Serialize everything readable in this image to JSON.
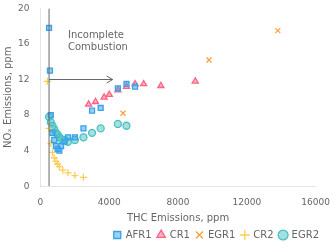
{
  "chart_data": {
    "type": "scatter",
    "xlabel": "THC Emissions, ppm",
    "ylabel": "NOₓ Emissions, ppm",
    "xlim": [
      0,
      16000
    ],
    "ylim": [
      0,
      20
    ],
    "xticks": [
      0,
      4000,
      8000,
      12000,
      16000
    ],
    "yticks": [
      0,
      4,
      8,
      12,
      16,
      20
    ],
    "grid": false,
    "legend": "lower right",
    "series": [
      {
        "name": "AFR1",
        "marker": "square",
        "x": [
          500,
          550,
          600,
          700,
          800,
          900,
          1000,
          1100,
          1200,
          1400,
          1600,
          2000,
          2500,
          3000,
          3500,
          4500,
          5000,
          5500
        ],
        "values": [
          17.8,
          13.0,
          8.0,
          6.0,
          5.2,
          4.5,
          4.2,
          4.0,
          4.5,
          5.0,
          5.5,
          5.5,
          6.5,
          8.5,
          8.8,
          11.0,
          11.5,
          11.2
        ]
      },
      {
        "name": "CR1",
        "marker": "triangle",
        "x": [
          2800,
          3200,
          3700,
          4000,
          4500,
          5000,
          5500,
          6000,
          7000,
          9000
        ],
        "values": [
          9.2,
          9.5,
          10.0,
          10.3,
          10.8,
          11.2,
          11.5,
          11.5,
          11.3,
          11.8
        ]
      },
      {
        "name": "EGR1",
        "marker": "x",
        "x": [
          4800,
          9800,
          13800
        ],
        "values": [
          8.2,
          14.2,
          17.5
        ]
      },
      {
        "name": "CR2",
        "marker": "plus",
        "x": [
          400,
          500,
          600,
          700,
          800,
          900,
          1000,
          1100,
          1300,
          1600,
          2000,
          2500
        ],
        "values": [
          11.8,
          6.5,
          4.8,
          3.8,
          3.2,
          2.8,
          2.5,
          2.2,
          1.8,
          1.5,
          1.2,
          1.0
        ]
      },
      {
        "name": "EGR2",
        "marker": "circle",
        "x": [
          500,
          600,
          700,
          800,
          900,
          1000,
          1100,
          1200,
          1400,
          1600,
          2000,
          2500,
          3000,
          3500,
          4500,
          5000
        ],
        "values": [
          7.8,
          7.2,
          6.8,
          6.4,
          6.0,
          5.8,
          5.5,
          5.3,
          5.2,
          5.0,
          5.2,
          5.5,
          6.0,
          6.5,
          7.0,
          6.8
        ]
      }
    ],
    "vlines": [
      500
    ],
    "arrows": [
      {
        "x_start": 500,
        "x_end": 4200,
        "y": 12.0
      }
    ],
    "annotations": [
      {
        "text": "Incomplete\nCombustion",
        "x": 1600,
        "y": 17.5
      }
    ]
  }
}
